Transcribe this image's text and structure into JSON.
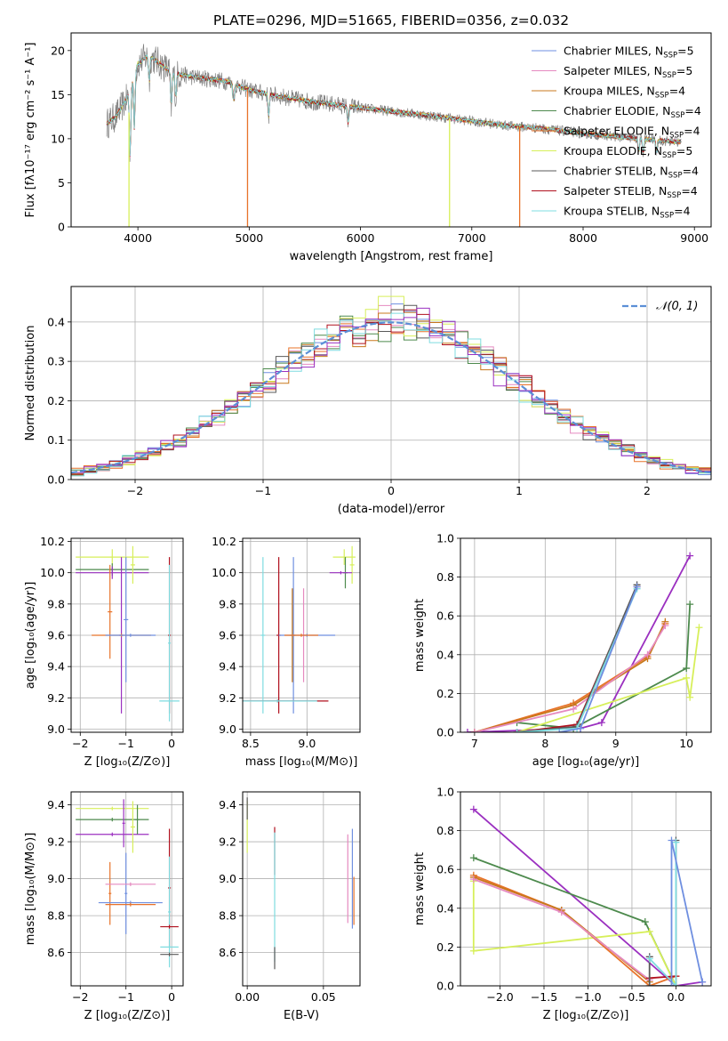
{
  "figure_title": "PLATE=0296, MJD=51665, FIBERID=0356, z=0.032",
  "colors": {
    "chabrier_miles": "#6f8fe0",
    "salpeter_miles": "#e58ac0",
    "kroupa_miles": "#c8781c",
    "chabrier_elodie": "#4d8a4d",
    "salpeter_elodie": "#e8732a",
    "kroupa_elodie": "#d7ef5a",
    "chabrier_stelib": "#595959",
    "salpeter_stelib": "#b0101e",
    "kroupa_stelib": "#7fdce0",
    "violet_extra": "#9b30c0",
    "observed": "#808080",
    "gaussian": "#5b8fd6"
  },
  "chart_data": [
    {
      "id": "spectrum",
      "type": "line",
      "title": "PLATE=0296, MJD=51665, FIBERID=0356, z=0.032",
      "xlabel": "wavelength [Angstrom, rest frame]",
      "ylabel": "Flux [fλ10⁻¹⁷ erg cm⁻² s⁻¹ A⁻¹]",
      "xlim": [
        3400,
        9150
      ],
      "ylim": [
        0,
        22
      ],
      "xticks": [
        4000,
        5000,
        6000,
        7000,
        8000,
        9000
      ],
      "yticks": [
        0,
        5,
        10,
        15,
        20
      ],
      "grid": false,
      "legend_position": "top-right",
      "legend": [
        {
          "label": "Chabrier MILES, N_SSP=5",
          "color_key": "chabrier_miles"
        },
        {
          "label": "Salpeter MILES, N_SSP=5",
          "color_key": "salpeter_miles"
        },
        {
          "label": "Kroupa MILES, N_SSP=4",
          "color_key": "kroupa_miles"
        },
        {
          "label": "Chabrier ELODIE, N_SSP=4",
          "color_key": "chabrier_elodie"
        },
        {
          "label": "Salpeter ELODIE, N_SSP=4",
          "color_key": "salpeter_elodie"
        },
        {
          "label": "Kroupa ELODIE, N_SSP=5",
          "color_key": "kroupa_elodie"
        },
        {
          "label": "Chabrier STELIB, N_SSP=4",
          "color_key": "chabrier_stelib"
        },
        {
          "label": "Salpeter STELIB, N_SSP=4",
          "color_key": "salpeter_stelib"
        },
        {
          "label": "Kroupa STELIB, N_SSP=4",
          "color_key": "kroupa_stelib"
        }
      ],
      "continuum": {
        "x": [
          3700,
          3800,
          3900,
          4000,
          4100,
          4200,
          4300,
          4500,
          4800,
          5000,
          5200,
          5500,
          6000,
          6500,
          7000,
          7300,
          7600,
          8000,
          8500,
          8900
        ],
        "y": [
          11.5,
          12.5,
          14.5,
          18.5,
          19.5,
          18.5,
          17.5,
          17.0,
          16.5,
          15.5,
          15.0,
          14.3,
          13.5,
          12.8,
          12.0,
          11.5,
          11.2,
          10.6,
          10.0,
          9.6
        ]
      },
      "dips": [
        {
          "x": 3930,
          "depth": 8
        },
        {
          "x": 3968,
          "depth": 6
        },
        {
          "x": 4102,
          "depth": 3
        },
        {
          "x": 4300,
          "depth": 4
        },
        {
          "x": 4340,
          "depth": 3
        },
        {
          "x": 4861,
          "depth": 2
        },
        {
          "x": 5175,
          "depth": 2.5
        },
        {
          "x": 5890,
          "depth": 2
        },
        {
          "x": 8500,
          "depth": 1.5
        },
        {
          "x": 8540,
          "depth": 1.5
        },
        {
          "x": 8660,
          "depth": 1.5
        }
      ],
      "drop_lines": [
        {
          "x": 3920,
          "color_key": "kroupa_elodie"
        },
        {
          "x": 4985,
          "color_key": "salpeter_elodie"
        },
        {
          "x": 6800,
          "color_key": "kroupa_elodie"
        },
        {
          "x": 7430,
          "color_key": "salpeter_elodie"
        }
      ]
    },
    {
      "id": "residuals",
      "type": "histogram",
      "xlabel": "(data-model)/error",
      "ylabel": "Normed distribution",
      "xlim": [
        -2.5,
        2.5
      ],
      "ylim": [
        0,
        0.49
      ],
      "xticks": [
        -2,
        -1,
        0,
        1,
        2
      ],
      "yticks": [
        0.0,
        0.1,
        0.2,
        0.3,
        0.4
      ],
      "grid": true,
      "legend_position": "top-right",
      "legend": [
        {
          "label": "𝒩(0, 1)",
          "color_key": "gaussian",
          "style": "dashed"
        }
      ],
      "bin_width": 0.1,
      "series_color_keys": [
        "chabrier_miles",
        "salpeter_miles",
        "kroupa_miles",
        "chabrier_elodie",
        "salpeter_elodie",
        "kroupa_elodie",
        "chabrier_stelib",
        "salpeter_stelib",
        "kroupa_stelib",
        "violet_extra"
      ],
      "peak_bin_value": 0.465
    },
    {
      "id": "age_vs_z",
      "type": "scatter",
      "xlabel": "Z [log₁₀(Z/Z⊙)]",
      "ylabel": "age  [log₁₀(age/yr)]",
      "xlim": [
        -2.2,
        0.25
      ],
      "ylim": [
        8.98,
        10.22
      ],
      "xticks": [
        -2,
        -1,
        0
      ],
      "yticks": [
        9.0,
        9.2,
        9.4,
        9.6,
        9.8,
        10.0,
        10.2
      ],
      "grid": true,
      "points": [
        {
          "x": -1.3,
          "xerr": 0.8,
          "y": 10.1,
          "yerr": 0.05,
          "color_key": "kroupa_elodie"
        },
        {
          "x": -1.3,
          "xerr": 0.8,
          "y": 10.02,
          "yerr": 0.04,
          "color_key": "chabrier_elodie"
        },
        {
          "x": -1.3,
          "xerr": 0.8,
          "y": 10.0,
          "yerr": 0.04,
          "color_key": "violet_extra"
        },
        {
          "x": -0.85,
          "xerr": 0.05,
          "y": 10.05,
          "yerr": 0.12,
          "color_key": "kroupa_elodie"
        },
        {
          "x": -1.35,
          "xerr": 0.05,
          "y": 9.75,
          "yerr": 0.3,
          "color_key": "salpeter_elodie"
        },
        {
          "x": -1.1,
          "xerr": 0.05,
          "y": 9.6,
          "yerr": 0.5,
          "color_key": "violet_extra"
        },
        {
          "x": -1.0,
          "xerr": 0.05,
          "y": 9.7,
          "yerr": 0.4,
          "color_key": "chabrier_miles"
        },
        {
          "x": -1.1,
          "xerr": 0.65,
          "y": 9.6,
          "yerr": 0.01,
          "color_key": "salpeter_elodie"
        },
        {
          "x": -0.9,
          "xerr": 0.55,
          "y": 9.6,
          "yerr": 0.01,
          "color_key": "chabrier_miles"
        },
        {
          "x": -0.05,
          "xerr": 0.03,
          "y": 9.6,
          "yerr": 0.5,
          "color_key": "salpeter_stelib"
        },
        {
          "x": -0.05,
          "xerr": 0.03,
          "y": 9.55,
          "yerr": 0.5,
          "color_key": "kroupa_stelib"
        },
        {
          "x": -0.05,
          "xerr": 0.22,
          "y": 9.18,
          "yerr": 0.01,
          "color_key": "kroupa_stelib"
        }
      ]
    },
    {
      "id": "age_vs_mass",
      "type": "scatter",
      "xlabel": "mass [log₁₀(M/M⊙)]",
      "ylabel": "",
      "xlim": [
        8.43,
        9.47
      ],
      "ylim": [
        8.98,
        10.22
      ],
      "xticks": [
        8.5,
        9.0
      ],
      "yticks": [
        9.0,
        9.2,
        9.4,
        9.6,
        9.8,
        10.0,
        10.2
      ],
      "grid": true,
      "points": [
        {
          "x": 9.33,
          "xerr": 0.1,
          "y": 10.1,
          "yerr": 0.05,
          "color_key": "kroupa_elodie"
        },
        {
          "x": 9.4,
          "xerr": 0.02,
          "y": 10.05,
          "yerr": 0.12,
          "color_key": "kroupa_elodie"
        },
        {
          "x": 9.34,
          "xerr": 0.02,
          "y": 10.0,
          "yerr": 0.1,
          "color_key": "chabrier_elodie"
        },
        {
          "x": 9.3,
          "xerr": 0.1,
          "y": 10.0,
          "yerr": 0.01,
          "color_key": "violet_extra"
        },
        {
          "x": 8.88,
          "xerr": 0.02,
          "y": 9.6,
          "yerr": 0.5,
          "color_key": "chabrier_miles"
        },
        {
          "x": 8.87,
          "xerr": 0.02,
          "y": 9.6,
          "yerr": 0.3,
          "color_key": "kroupa_miles"
        },
        {
          "x": 8.97,
          "xerr": 0.02,
          "y": 9.6,
          "yerr": 0.3,
          "color_key": "salpeter_miles"
        },
        {
          "x": 8.75,
          "xerr": 0.02,
          "y": 9.6,
          "yerr": 0.5,
          "color_key": "salpeter_stelib"
        },
        {
          "x": 9.0,
          "xerr": 0.25,
          "y": 9.6,
          "yerr": 0.01,
          "color_key": "chabrier_miles"
        },
        {
          "x": 8.95,
          "xerr": 0.15,
          "y": 9.6,
          "yerr": 0.01,
          "color_key": "salpeter_elodie"
        },
        {
          "x": 8.61,
          "xerr": 0.02,
          "y": 9.6,
          "yerr": 0.5,
          "color_key": "kroupa_stelib"
        },
        {
          "x": 8.74,
          "xerr": 0.45,
          "y": 9.18,
          "yerr": 0.01,
          "color_key": "salpeter_stelib"
        },
        {
          "x": 8.74,
          "xerr": 0.35,
          "y": 9.18,
          "yerr": 0.01,
          "color_key": "kroupa_stelib"
        }
      ]
    },
    {
      "id": "weight_vs_age",
      "type": "line",
      "xlabel": "age  [log₁₀(age/yr)]",
      "ylabel": "mass weight",
      "xlim": [
        6.8,
        10.35
      ],
      "ylim": [
        0,
        1.0
      ],
      "xticks": [
        7,
        8,
        9,
        10
      ],
      "yticks": [
        0.0,
        0.2,
        0.4,
        0.6,
        0.8,
        1.0
      ],
      "grid": true,
      "series": [
        {
          "color_key": "violet_extra",
          "x": [
            6.9,
            8.5,
            8.8,
            10.05
          ],
          "y": [
            0.0,
            0.02,
            0.05,
            0.91
          ]
        },
        {
          "color_key": "chabrier_elodie",
          "x": [
            7.6,
            8.4,
            10.0,
            10.05
          ],
          "y": [
            0.05,
            0.02,
            0.33,
            0.66
          ]
        },
        {
          "color_key": "kroupa_elodie",
          "x": [
            7.6,
            10.0,
            10.05,
            10.18
          ],
          "y": [
            0.0,
            0.28,
            0.18,
            0.54
          ]
        },
        {
          "color_key": "salpeter_elodie",
          "x": [
            7.0,
            8.4,
            9.45,
            9.7
          ],
          "y": [
            0.0,
            0.15,
            0.39,
            0.56
          ]
        },
        {
          "color_key": "kroupa_miles",
          "x": [
            7.0,
            8.4,
            9.45,
            9.7
          ],
          "y": [
            0.0,
            0.14,
            0.38,
            0.57
          ]
        },
        {
          "color_key": "salpeter_miles",
          "x": [
            7.0,
            8.4,
            9.45,
            9.7
          ],
          "y": [
            0.0,
            0.12,
            0.4,
            0.55
          ]
        },
        {
          "color_key": "salpeter_stelib",
          "x": [
            7.6,
            8.45,
            9.3
          ],
          "y": [
            0.0,
            0.04,
            0.75
          ]
        },
        {
          "color_key": "chabrier_stelib",
          "x": [
            7.6,
            8.45,
            9.3
          ],
          "y": [
            0.0,
            0.03,
            0.76
          ]
        },
        {
          "color_key": "kroupa_stelib",
          "x": [
            7.6,
            8.45,
            9.3
          ],
          "y": [
            0.0,
            0.02,
            0.74
          ]
        },
        {
          "color_key": "chabrier_miles",
          "x": [
            8.2,
            8.5,
            9.3
          ],
          "y": [
            0.0,
            0.02,
            0.75
          ]
        }
      ]
    },
    {
      "id": "mass_vs_z",
      "type": "scatter",
      "xlabel": "Z [log₁₀(Z/Z⊙)]",
      "ylabel": "mass [log₁₀(M/M⊙)]",
      "xlim": [
        -2.2,
        0.25
      ],
      "ylim": [
        8.42,
        9.47
      ],
      "xticks": [
        -2,
        -1,
        0
      ],
      "yticks": [
        8.6,
        8.8,
        9.0,
        9.2,
        9.4
      ],
      "grid": true,
      "points": [
        {
          "x": -1.3,
          "xerr": 0.8,
          "y": 9.38,
          "yerr": 0.01,
          "color_key": "kroupa_elodie"
        },
        {
          "x": -1.3,
          "xerr": 0.8,
          "y": 9.32,
          "yerr": 0.01,
          "color_key": "chabrier_elodie"
        },
        {
          "x": -1.3,
          "xerr": 0.8,
          "y": 9.24,
          "yerr": 0.01,
          "color_key": "violet_extra"
        },
        {
          "x": -0.85,
          "xerr": 0.05,
          "y": 9.28,
          "yerr": 0.14,
          "color_key": "kroupa_elodie"
        },
        {
          "x": -0.75,
          "xerr": 0.05,
          "y": 9.32,
          "yerr": 0.08,
          "color_key": "chabrier_elodie"
        },
        {
          "x": -1.05,
          "xerr": 0.03,
          "y": 9.3,
          "yerr": 0.13,
          "color_key": "violet_extra"
        },
        {
          "x": -1.35,
          "xerr": 0.03,
          "y": 8.92,
          "yerr": 0.17,
          "color_key": "salpeter_elodie"
        },
        {
          "x": -1.0,
          "xerr": 0.03,
          "y": 8.92,
          "yerr": 0.22,
          "color_key": "chabrier_miles"
        },
        {
          "x": -0.9,
          "xerr": 0.55,
          "y": 8.97,
          "yerr": 0.01,
          "color_key": "salpeter_miles"
        },
        {
          "x": -0.9,
          "xerr": 0.7,
          "y": 8.87,
          "yerr": 0.01,
          "color_key": "chabrier_miles"
        },
        {
          "x": -0.9,
          "xerr": 0.55,
          "y": 8.86,
          "yerr": 0.01,
          "color_key": "salpeter_elodie"
        },
        {
          "x": -0.05,
          "xerr": 0.03,
          "y": 8.95,
          "yerr": 0.32,
          "color_key": "salpeter_stelib"
        },
        {
          "x": -0.05,
          "xerr": 0.03,
          "y": 8.82,
          "yerr": 0.3,
          "color_key": "kroupa_stelib"
        },
        {
          "x": -0.05,
          "xerr": 0.2,
          "y": 8.74,
          "yerr": 0.01,
          "color_key": "salpeter_stelib"
        },
        {
          "x": -0.05,
          "xerr": 0.2,
          "y": 8.63,
          "yerr": 0.01,
          "color_key": "kroupa_stelib"
        },
        {
          "x": -0.05,
          "xerr": 0.2,
          "y": 8.59,
          "yerr": 0.01,
          "color_key": "chabrier_stelib"
        }
      ]
    },
    {
      "id": "mass_vs_ebv",
      "type": "scatter",
      "xlabel": "E(B-V)",
      "ylabel": "",
      "xlim": [
        -0.003,
        0.074
      ],
      "ylim": [
        8.42,
        9.47
      ],
      "xticks": [
        0.0,
        0.05
      ],
      "yticks": [
        8.6,
        8.8,
        9.0,
        9.2,
        9.4
      ],
      "grid": true,
      "points": [
        {
          "x": 0.0,
          "xerr": 0.0,
          "y": 9.28,
          "yerr": 0.14,
          "color_key": "kroupa_elodie"
        },
        {
          "x": 0.0,
          "xerr": 0.0,
          "y": 9.38,
          "yerr": 0.06,
          "color_key": "chabrier_stelib"
        },
        {
          "x": 0.018,
          "xerr": 0.0,
          "y": 9.15,
          "yerr": 0.13,
          "color_key": "salpeter_stelib"
        },
        {
          "x": 0.018,
          "xerr": 0.0,
          "y": 8.9,
          "yerr": 0.35,
          "color_key": "kroupa_stelib"
        },
        {
          "x": 0.018,
          "xerr": 0.0,
          "y": 8.57,
          "yerr": 0.06,
          "color_key": "chabrier_stelib"
        },
        {
          "x": 0.066,
          "xerr": 0.0,
          "y": 9.0,
          "yerr": 0.24,
          "color_key": "salpeter_miles"
        },
        {
          "x": 0.069,
          "xerr": 0.0,
          "y": 9.0,
          "yerr": 0.27,
          "color_key": "chabrier_miles"
        },
        {
          "x": 0.07,
          "xerr": 0.0,
          "y": 8.88,
          "yerr": 0.13,
          "color_key": "salpeter_elodie"
        }
      ]
    },
    {
      "id": "weight_vs_z",
      "type": "line",
      "xlabel": "Z [log₁₀(Z/Z⊙)]",
      "ylabel": "mass weight",
      "xlim": [
        -2.45,
        0.4
      ],
      "ylim": [
        0,
        1.0
      ],
      "xticks": [
        -2.0,
        -1.5,
        -1.0,
        -0.5,
        0.0
      ],
      "yticks": [
        0.0,
        0.2,
        0.4,
        0.6,
        0.8,
        1.0
      ],
      "grid": true,
      "series": [
        {
          "color_key": "violet_extra",
          "x": [
            -2.3,
            0.0,
            0.3
          ],
          "y": [
            0.91,
            0.0,
            0.02
          ]
        },
        {
          "color_key": "chabrier_elodie",
          "x": [
            -2.3,
            -0.35,
            0.0
          ],
          "y": [
            0.66,
            0.33,
            0.0
          ]
        },
        {
          "color_key": "kroupa_elodie",
          "x": [
            -2.3,
            -2.3,
            -0.3,
            0.0
          ],
          "y": [
            0.54,
            0.18,
            0.28,
            0.0
          ]
        },
        {
          "color_key": "salpeter_elodie",
          "x": [
            -2.3,
            -1.3,
            -0.3,
            0.0
          ],
          "y": [
            0.57,
            0.39,
            0.0,
            0.05
          ]
        },
        {
          "color_key": "kroupa_miles",
          "x": [
            -2.3,
            -1.3,
            -0.3
          ],
          "y": [
            0.56,
            0.39,
            0.02
          ]
        },
        {
          "color_key": "salpeter_miles",
          "x": [
            -2.3,
            -1.3,
            -0.3
          ],
          "y": [
            0.55,
            0.38,
            0.03
          ]
        },
        {
          "color_key": "salpeter_stelib",
          "x": [
            -0.3,
            0.0
          ],
          "y": [
            0.04,
            0.05
          ]
        },
        {
          "color_key": "chabrier_stelib",
          "x": [
            -0.3,
            -0.3,
            0.0,
            0.0
          ],
          "y": [
            0.15,
            0.0,
            0.0,
            0.75
          ]
        },
        {
          "color_key": "kroupa_stelib",
          "x": [
            -0.3,
            0.0,
            0.0
          ],
          "y": [
            0.14,
            0.0,
            0.74
          ]
        },
        {
          "color_key": "chabrier_miles",
          "x": [
            -0.05,
            -0.05,
            0.3
          ],
          "y": [
            0.0,
            0.75,
            0.02
          ]
        }
      ]
    }
  ]
}
